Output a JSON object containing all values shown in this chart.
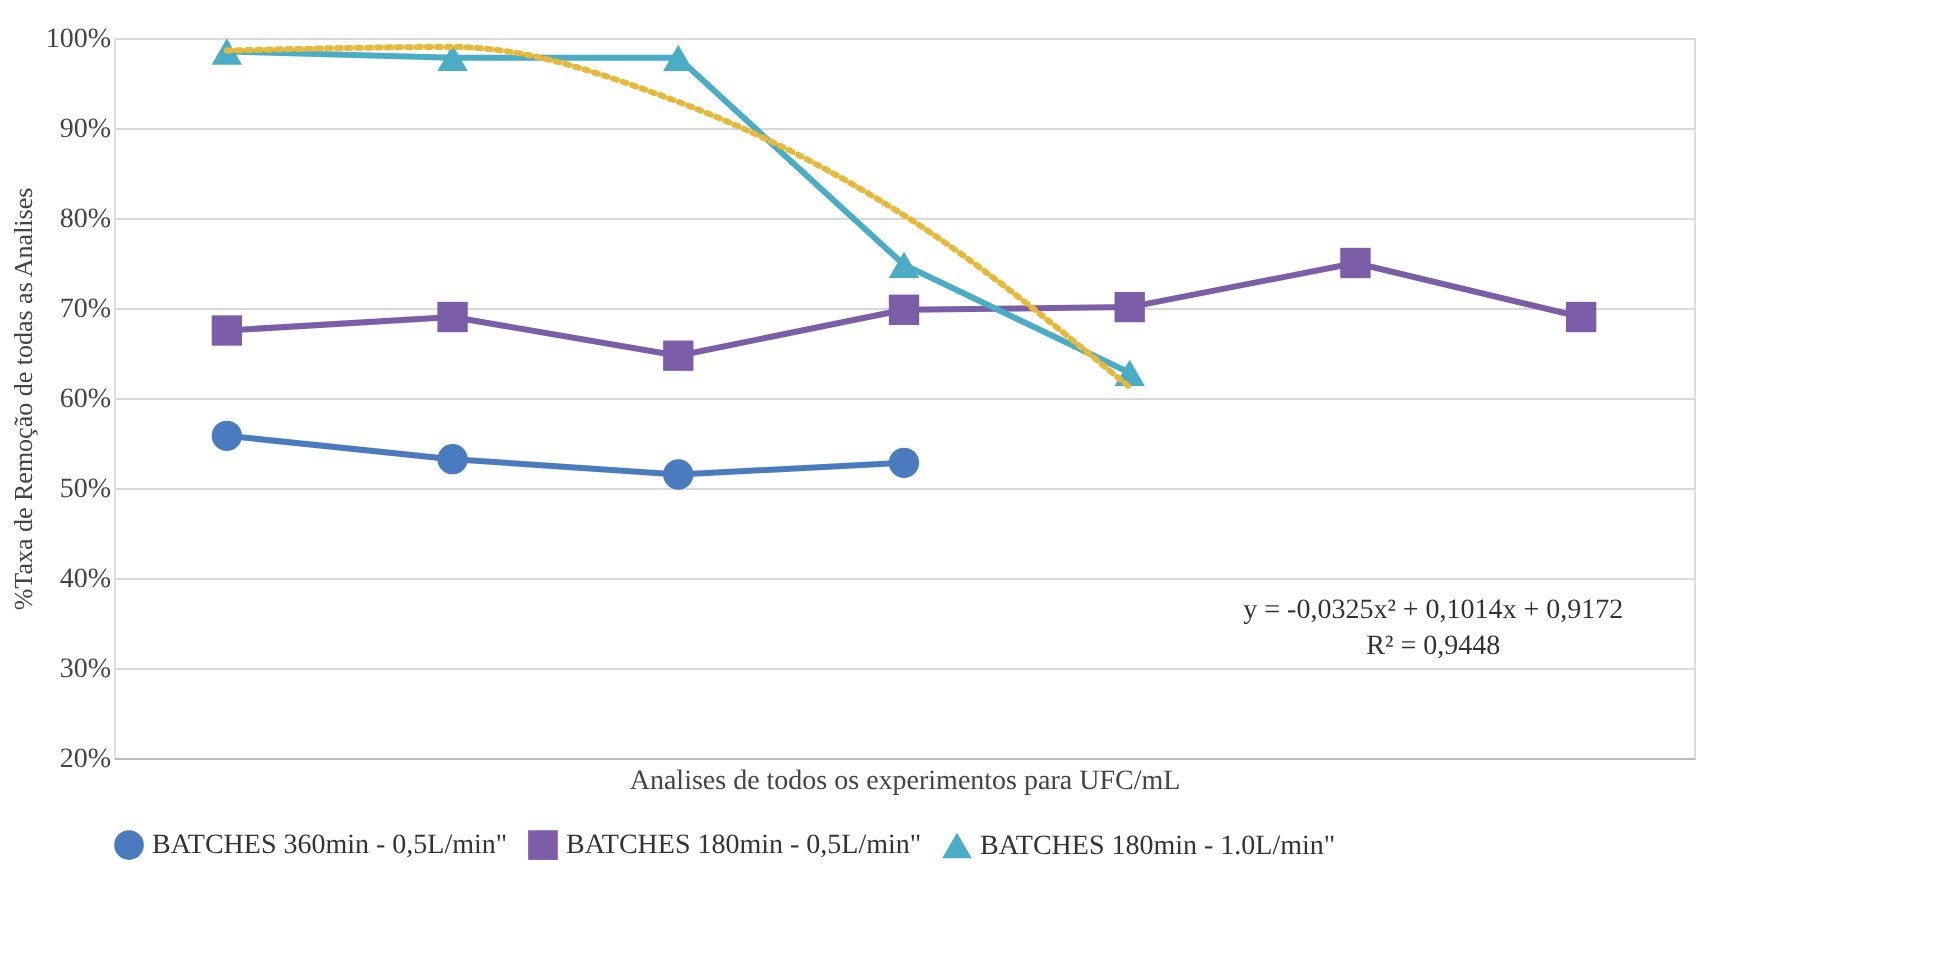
{
  "chart_data": {
    "type": "line",
    "xlabel": "Analises de todos os experimentos para UFC/mL",
    "ylabel": "%Taxa de Remoção de todas as Analises",
    "categories": [
      null,
      null,
      null,
      null,
      null,
      null,
      null
    ],
    "series": [
      {
        "name": "BATCHES 360min - 0,5L/min\"",
        "color": "#4a7bbf",
        "marker": "circle",
        "values": [
          55.8,
          53.2,
          51.5,
          52.8,
          null,
          null,
          null
        ]
      },
      {
        "name": "BATCHES 180min - 0,5L/min\"",
        "color": "#7b5ea7",
        "marker": "square",
        "values": [
          67.5,
          69,
          64.7,
          69.8,
          70.1,
          75,
          69
        ]
      },
      {
        "name": "BATCHES 180min - 1.0L/min\"",
        "color": "#4bacc6",
        "marker": "triangle",
        "values": [
          98.5,
          97.8,
          97.8,
          74.8,
          62.8,
          null,
          null
        ]
      },
      {
        "color": "#e6b93a",
        "marker": "none",
        "line_style": "dotted",
        "values": [
          98.6,
          99.0,
          92.9,
          80.3,
          61.2,
          null,
          null
        ]
      }
    ],
    "ylim": [
      20,
      100
    ],
    "yticks": [
      {
        "value": 20,
        "label": "20%"
      },
      {
        "value": 30,
        "label": "30%"
      },
      {
        "value": 40,
        "label": "40%"
      },
      {
        "value": 50,
        "label": "50%"
      },
      {
        "value": 60,
        "label": "60%"
      },
      {
        "value": 70,
        "label": "70%"
      },
      {
        "value": 80,
        "label": "80%"
      },
      {
        "value": 90,
        "label": "90%"
      },
      {
        "value": 100,
        "label": "100%"
      }
    ],
    "grid": "y",
    "legend": "bottom",
    "tick_labels": "y",
    "annotations": [
      "y = -0,0325x² + 0,1014x + 0,9172",
      "R² = 0,9448"
    ]
  }
}
